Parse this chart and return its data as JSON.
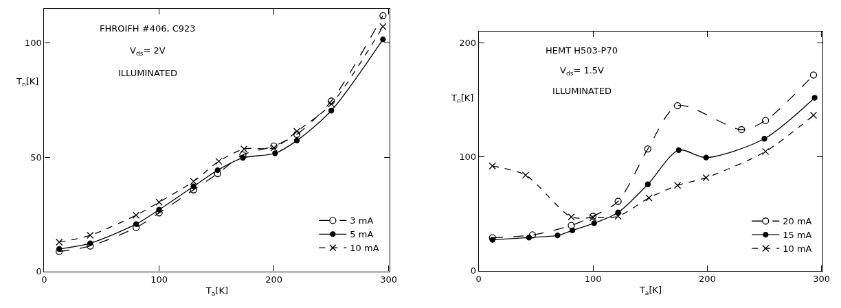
{
  "chart_data": [
    {
      "type": "line",
      "annotations": [
        "FHROIFH #406, C923",
        "V$_{ds}$= 2V",
        "ILLUMINATED"
      ],
      "xlabel": "T$_{a}$[K]",
      "ylabel": "T$_{n}$[K]",
      "xlim": [
        0,
        301
      ],
      "xticks": [
        0,
        100,
        200,
        300
      ],
      "ylim": [
        0,
        115
      ],
      "yticks": [
        0,
        50,
        100
      ],
      "legend": "bottom right",
      "series": [
        {
          "name": "3 mA",
          "color": "#000000",
          "marker": "circle-open",
          "line_style": "longdash",
          "x": [
            13,
            40,
            80,
            100,
            130,
            151,
            173,
            200,
            220,
            250,
            295
          ],
          "values": [
            8.7,
            11.1,
            19.2,
            25.6,
            35.7,
            42.8,
            51,
            54.9,
            60,
            74.6,
            112
          ]
        },
        {
          "name": "5 mA",
          "color": "#000000",
          "marker": "circle",
          "line_style": "solid",
          "x": [
            13,
            40,
            80,
            100,
            130,
            151,
            173,
            201,
            220,
            250,
            295
          ],
          "values": [
            9.8,
            12.3,
            20.7,
            27,
            37.2,
            44.3,
            49.7,
            51.7,
            57.3,
            70.4,
            101.6
          ]
        },
        {
          "name": "10 mA",
          "color": "#000000",
          "marker": "x",
          "line_style": "dashed",
          "x": [
            13,
            40,
            80,
            100,
            130,
            152,
            174,
            200,
            220,
            250,
            295
          ],
          "values": [
            12.8,
            15.8,
            24.6,
            30.3,
            39.4,
            48.2,
            53.6,
            54.1,
            61.3,
            73.3,
            107.2
          ]
        }
      ]
    },
    {
      "type": "line",
      "annotations": [
        "HEMT H503-P70",
        "V$_{ds}$= 1.5V",
        "ILLUMINATED"
      ],
      "xlabel": "T$_{a}$[K]",
      "ylabel": "T$_{n}$[K]",
      "xlim": [
        0,
        301
      ],
      "xticks": [
        0,
        100,
        200,
        300
      ],
      "ylim": [
        0,
        210
      ],
      "yticks": [
        0,
        100,
        200
      ],
      "legend": "bottom right",
      "series": [
        {
          "name": "20 mA",
          "color": "#000000",
          "marker": "circle-open",
          "line_style": "longdash",
          "x": [
            12,
            47,
            81,
            100,
            122,
            148,
            174,
            230,
            251,
            293
          ],
          "values": [
            29,
            31.5,
            39.8,
            47.9,
            61,
            107,
            145,
            124,
            132,
            172
          ]
        },
        {
          "name": "15 mA",
          "color": "#000000",
          "marker": "circle",
          "line_style": "solid",
          "x": [
            12,
            44,
            69,
            82,
            101,
            122,
            148,
            175,
            199,
            250,
            294
          ],
          "values": [
            27.2,
            29.2,
            31.1,
            35.5,
            41.8,
            51.2,
            75.9,
            106,
            99.5,
            116,
            152
          ]
        },
        {
          "name": "10 mA",
          "color": "#000000",
          "marker": "x",
          "line_style": "dashed",
          "x": [
            12,
            41,
            81,
            100,
            122,
            149,
            174,
            199,
            251,
            293
          ],
          "values": [
            92,
            84,
            47.3,
            46.7,
            47.9,
            64,
            75,
            81.8,
            104.8,
            136.6
          ]
        }
      ]
    }
  ]
}
